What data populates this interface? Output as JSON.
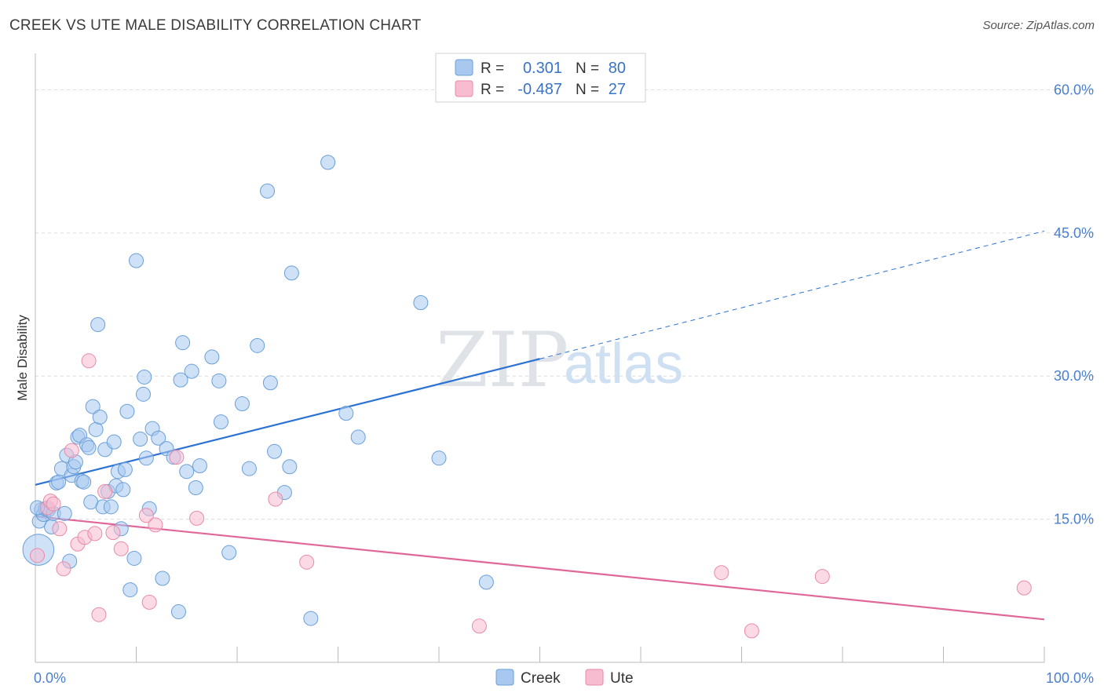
{
  "header": {
    "title": "CREEK VS UTE MALE DISABILITY CORRELATION CHART",
    "source": "Source: ZipAtlas.com"
  },
  "watermark": {
    "zip": "ZIP",
    "atlas": "atlas"
  },
  "colors": {
    "creek_fill": "#a8c8f0",
    "creek_stroke": "#6a9fd8",
    "creek_line": "#2d72d2",
    "ute_fill": "#f7bcd0",
    "ute_stroke": "#e88aa8",
    "ute_line": "#e0679a",
    "grid": "#dcdcdc",
    "tick_text": "#4a7fd0"
  },
  "legend_box": {
    "rows": [
      {
        "r_label": "R =",
        "r_value": "0.301",
        "n_label": "N =",
        "n_value": "80"
      },
      {
        "r_label": "R =",
        "r_value": "-0.487",
        "n_label": "N =",
        "n_value": "27"
      }
    ]
  },
  "bottom_legend": [
    "Creek",
    "Ute"
  ],
  "chart_data": {
    "type": "scatter",
    "title": "CREEK VS UTE MALE DISABILITY CORRELATION CHART",
    "xlabel": "",
    "ylabel": "Male Disability",
    "xlim": [
      0,
      100
    ],
    "ylim": [
      0,
      63
    ],
    "x_tick_labels": [
      {
        "value": 0,
        "label": "0.0%"
      },
      {
        "value": 100,
        "label": "100.0%"
      }
    ],
    "y_tick_labels": [
      {
        "value": 15,
        "label": "15.0%"
      },
      {
        "value": 30,
        "label": "30.0%"
      },
      {
        "value": 45,
        "label": "45.0%"
      },
      {
        "value": 60,
        "label": "60.0%"
      }
    ],
    "grid": true,
    "legend": "bottom-center",
    "series": [
      {
        "name": "Creek",
        "r": 0.301,
        "n": 80,
        "trend": {
          "x0": 0,
          "y0": 18.6,
          "x1": 50,
          "y1": 31.8,
          "dash_to_x": 100,
          "dash_to_y": 45.2
        },
        "points": [
          [
            0.3,
            11.8
          ],
          [
            0.4,
            14.8
          ],
          [
            0.6,
            16.0
          ],
          [
            0.8,
            15.5
          ],
          [
            1.0,
            16.1
          ],
          [
            1.3,
            16.0
          ],
          [
            1.6,
            14.2
          ],
          [
            1.8,
            15.6
          ],
          [
            2.1,
            18.8
          ],
          [
            2.3,
            18.9
          ],
          [
            2.6,
            20.3
          ],
          [
            2.9,
            15.6
          ],
          [
            3.1,
            21.7
          ],
          [
            3.4,
            10.6
          ],
          [
            3.6,
            19.6
          ],
          [
            3.8,
            20.5
          ],
          [
            4.0,
            21.0
          ],
          [
            4.2,
            23.6
          ],
          [
            4.4,
            23.8
          ],
          [
            4.6,
            19.0
          ],
          [
            4.8,
            18.9
          ],
          [
            5.1,
            22.8
          ],
          [
            5.3,
            22.5
          ],
          [
            5.5,
            16.8
          ],
          [
            5.7,
            26.8
          ],
          [
            6.0,
            24.4
          ],
          [
            6.2,
            35.4
          ],
          [
            6.4,
            25.7
          ],
          [
            6.7,
            16.3
          ],
          [
            6.9,
            22.3
          ],
          [
            7.2,
            17.9
          ],
          [
            7.5,
            16.3
          ],
          [
            7.8,
            23.1
          ],
          [
            8.0,
            18.5
          ],
          [
            8.2,
            20.0
          ],
          [
            8.5,
            14.0
          ],
          [
            8.7,
            18.1
          ],
          [
            8.9,
            20.2
          ],
          [
            9.1,
            26.3
          ],
          [
            9.4,
            7.6
          ],
          [
            9.8,
            10.9
          ],
          [
            10.0,
            42.1
          ],
          [
            10.4,
            23.4
          ],
          [
            10.7,
            28.1
          ],
          [
            10.8,
            29.9
          ],
          [
            11.0,
            21.4
          ],
          [
            11.3,
            16.1
          ],
          [
            11.6,
            24.5
          ],
          [
            12.2,
            23.5
          ],
          [
            12.6,
            8.8
          ],
          [
            13.0,
            22.4
          ],
          [
            13.7,
            21.5
          ],
          [
            14.2,
            5.3
          ],
          [
            14.4,
            29.6
          ],
          [
            14.6,
            33.5
          ],
          [
            15.0,
            20.0
          ],
          [
            15.5,
            30.5
          ],
          [
            15.9,
            18.3
          ],
          [
            16.3,
            20.6
          ],
          [
            17.5,
            32.0
          ],
          [
            18.2,
            29.5
          ],
          [
            18.4,
            25.2
          ],
          [
            19.2,
            11.5
          ],
          [
            20.5,
            27.1
          ],
          [
            21.2,
            20.3
          ],
          [
            22.0,
            33.2
          ],
          [
            23.0,
            49.4
          ],
          [
            23.3,
            29.3
          ],
          [
            23.7,
            22.1
          ],
          [
            24.7,
            17.8
          ],
          [
            25.2,
            20.5
          ],
          [
            25.4,
            40.8
          ],
          [
            27.3,
            4.6
          ],
          [
            29.0,
            52.4
          ],
          [
            30.8,
            26.1
          ],
          [
            32.0,
            23.6
          ],
          [
            38.2,
            37.7
          ],
          [
            40.0,
            21.4
          ],
          [
            44.7,
            8.4
          ],
          [
            0.2,
            16.2
          ]
        ],
        "point_sizes": {
          "default": 1,
          "large_first_point": 2.2
        }
      },
      {
        "name": "Ute",
        "r": -0.487,
        "n": 27,
        "trend": {
          "x0": 0,
          "y0": 15.3,
          "x1": 100,
          "y1": 4.5
        },
        "points": [
          [
            0.2,
            11.2
          ],
          [
            1.2,
            16.2
          ],
          [
            1.5,
            16.9
          ],
          [
            1.8,
            16.6
          ],
          [
            2.4,
            14.0
          ],
          [
            2.8,
            9.8
          ],
          [
            3.6,
            22.2
          ],
          [
            4.2,
            12.4
          ],
          [
            4.9,
            13.1
          ],
          [
            5.3,
            31.6
          ],
          [
            5.9,
            13.5
          ],
          [
            6.3,
            5.0
          ],
          [
            6.9,
            17.9
          ],
          [
            7.7,
            13.6
          ],
          [
            8.5,
            11.9
          ],
          [
            11.0,
            15.4
          ],
          [
            11.3,
            6.3
          ],
          [
            11.9,
            14.4
          ],
          [
            14.0,
            21.5
          ],
          [
            16.0,
            15.1
          ],
          [
            23.8,
            17.1
          ],
          [
            26.9,
            10.5
          ],
          [
            44.0,
            3.8
          ],
          [
            68.0,
            9.4
          ],
          [
            71.0,
            3.3
          ],
          [
            78.0,
            9.0
          ],
          [
            98.0,
            7.8
          ]
        ]
      }
    ]
  }
}
